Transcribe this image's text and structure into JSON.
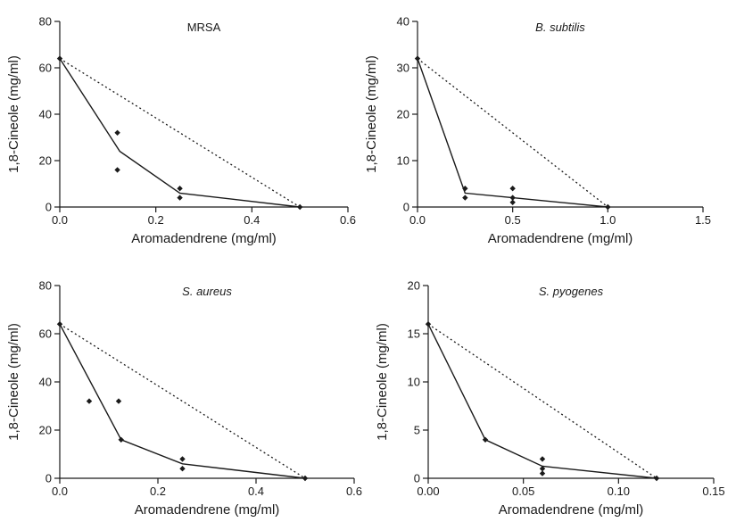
{
  "chart_data": [
    {
      "type": "scatter",
      "title": "MRSA",
      "title_style": "normal",
      "xlabel": "Aromadendrene (mg/ml)",
      "ylabel": "1,8-Cineole (mg/ml)",
      "xlim": [
        0,
        0.6
      ],
      "ylim": [
        0,
        80
      ],
      "xticks": [
        0,
        0.2,
        0.4,
        0.6
      ],
      "xtick_labels": [
        "0.0",
        "0.2",
        "0.4",
        "0.6"
      ],
      "yticks": [
        0,
        20,
        40,
        60,
        80
      ],
      "ytick_labels": [
        "0",
        "20",
        "40",
        "60",
        "80"
      ],
      "grid": false,
      "points": [
        [
          0,
          64
        ],
        [
          0.12,
          32
        ],
        [
          0.12,
          16
        ],
        [
          0.25,
          8
        ],
        [
          0.25,
          4
        ],
        [
          0.5,
          0
        ]
      ],
      "isobologram": [
        [
          0,
          64
        ],
        [
          0.125,
          24
        ],
        [
          0.25,
          6
        ],
        [
          0.5,
          0
        ]
      ],
      "additivity_line": [
        [
          0,
          64
        ],
        [
          0.5,
          0
        ]
      ]
    },
    {
      "type": "scatter",
      "title": "B. subtilis",
      "title_style": "italic",
      "xlabel": "Aromadendrene (mg/ml)",
      "ylabel": "1,8-Cineole (mg/ml)",
      "xlim": [
        0,
        1.5
      ],
      "ylim": [
        0,
        40
      ],
      "xticks": [
        0,
        0.5,
        1.0,
        1.5
      ],
      "xtick_labels": [
        "0.0",
        "0.5",
        "1.0",
        "1.5"
      ],
      "yticks": [
        0,
        10,
        20,
        30,
        40
      ],
      "ytick_labels": [
        "0",
        "10",
        "20",
        "30",
        "40"
      ],
      "grid": false,
      "points": [
        [
          0,
          32
        ],
        [
          0.25,
          4
        ],
        [
          0.25,
          2
        ],
        [
          0.5,
          4
        ],
        [
          0.5,
          2
        ],
        [
          0.5,
          1
        ],
        [
          1.0,
          0
        ]
      ],
      "isobologram": [
        [
          0,
          32
        ],
        [
          0.25,
          3
        ],
        [
          0.5,
          2
        ],
        [
          1.0,
          0
        ]
      ],
      "additivity_line": [
        [
          0,
          32
        ],
        [
          1.0,
          0
        ]
      ]
    },
    {
      "type": "scatter",
      "title": "S. aureus",
      "title_style": "italic",
      "xlabel": "Aromadendrene (mg/ml)",
      "ylabel": "1,8-Cineole (mg/ml)",
      "xlim": [
        0,
        0.6
      ],
      "ylim": [
        0,
        80
      ],
      "xticks": [
        0,
        0.2,
        0.4,
        0.6
      ],
      "xtick_labels": [
        "0.0",
        "0.2",
        "0.4",
        "0.6"
      ],
      "yticks": [
        0,
        20,
        40,
        60,
        80
      ],
      "ytick_labels": [
        "0",
        "20",
        "40",
        "60",
        "80"
      ],
      "grid": false,
      "points": [
        [
          0,
          64
        ],
        [
          0.06,
          32
        ],
        [
          0.12,
          32
        ],
        [
          0.125,
          16
        ],
        [
          0.25,
          8
        ],
        [
          0.25,
          4
        ],
        [
          0.5,
          0
        ]
      ],
      "isobologram": [
        [
          0,
          64
        ],
        [
          0.125,
          16
        ],
        [
          0.25,
          6
        ],
        [
          0.5,
          0
        ]
      ],
      "additivity_line": [
        [
          0,
          64
        ],
        [
          0.5,
          0
        ]
      ]
    },
    {
      "type": "scatter",
      "title": "S. pyogenes",
      "title_style": "italic",
      "xlabel": "Aromadendrene (mg/ml)",
      "ylabel": "1,8-Cineole (mg/ml)",
      "xlim": [
        0,
        0.15
      ],
      "ylim": [
        0,
        20
      ],
      "xticks": [
        0,
        0.05,
        0.1,
        0.15
      ],
      "xtick_labels": [
        "0.00",
        "0.05",
        "0.10",
        "0.15"
      ],
      "yticks": [
        0,
        5,
        10,
        15,
        20
      ],
      "ytick_labels": [
        "0",
        "5",
        "10",
        "15",
        "20"
      ],
      "grid": false,
      "points": [
        [
          0,
          16
        ],
        [
          0.03,
          4
        ],
        [
          0.06,
          2
        ],
        [
          0.06,
          1
        ],
        [
          0.06,
          0.5
        ],
        [
          0.12,
          0
        ]
      ],
      "isobologram": [
        [
          0,
          16
        ],
        [
          0.03,
          4
        ],
        [
          0.06,
          1.25
        ],
        [
          0.12,
          0
        ]
      ],
      "additivity_line": [
        [
          0,
          16
        ],
        [
          0.12,
          0
        ]
      ]
    }
  ]
}
